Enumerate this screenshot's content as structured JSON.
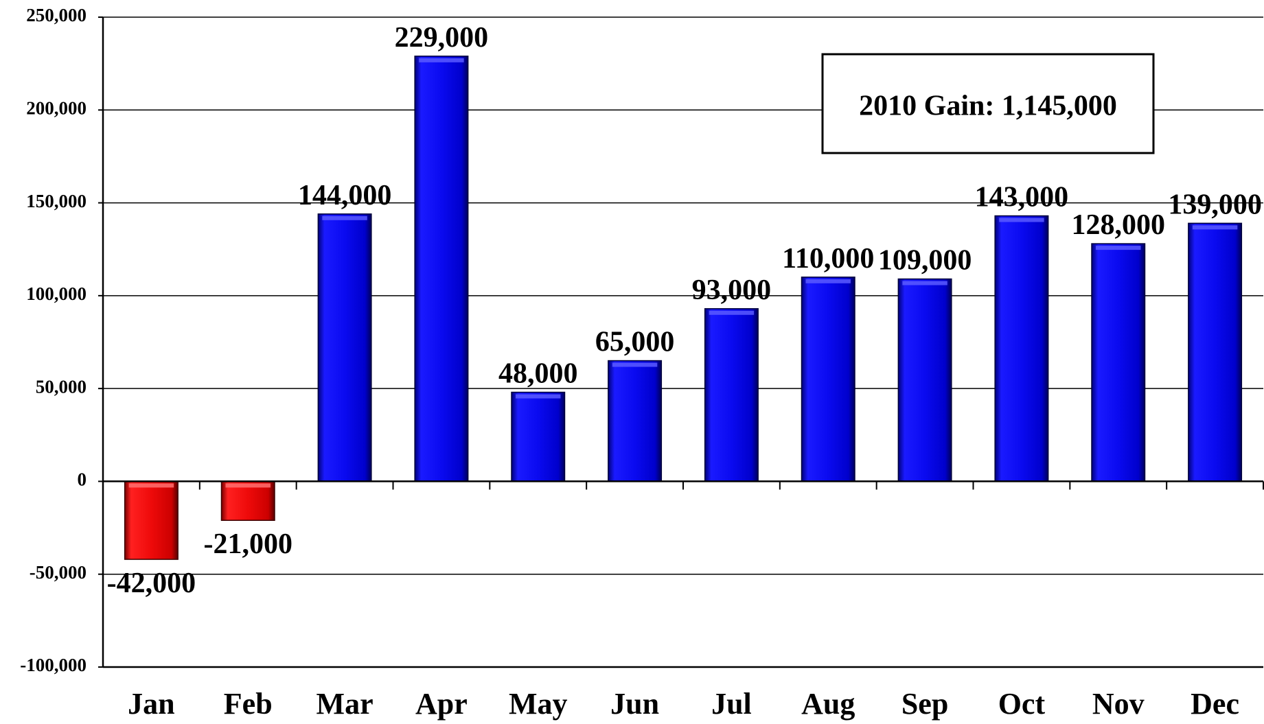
{
  "chart_data": {
    "type": "bar",
    "title": "",
    "xlabel": "",
    "ylabel": "",
    "categories": [
      "Jan",
      "Feb",
      "Mar",
      "Apr",
      "May",
      "Jun",
      "Jul",
      "Aug",
      "Sep",
      "Oct",
      "Nov",
      "Dec"
    ],
    "values": [
      -42000,
      -21000,
      144000,
      229000,
      48000,
      65000,
      93000,
      110000,
      109000,
      143000,
      128000,
      139000
    ],
    "data_labels": [
      "-42,000",
      "-21,000",
      "144,000",
      "229,000",
      "48,000",
      "65,000",
      "93,000",
      "110,000",
      "109,000",
      "143,000",
      "128,000",
      "139,000"
    ],
    "ylim": [
      -100000,
      250000
    ],
    "yticks": [
      250000,
      200000,
      150000,
      100000,
      50000,
      0,
      -50000,
      -100000
    ],
    "ytick_labels": [
      "250,000",
      "200,000",
      "150,000",
      "100,000",
      "50,000",
      "0",
      "-50,000",
      "-100,000"
    ],
    "grid": true,
    "legend": false,
    "colors": {
      "positive": "#0A0AF0",
      "negative": "#EE0A0A"
    },
    "annotation": "2010 Gain: 1,145,000"
  }
}
